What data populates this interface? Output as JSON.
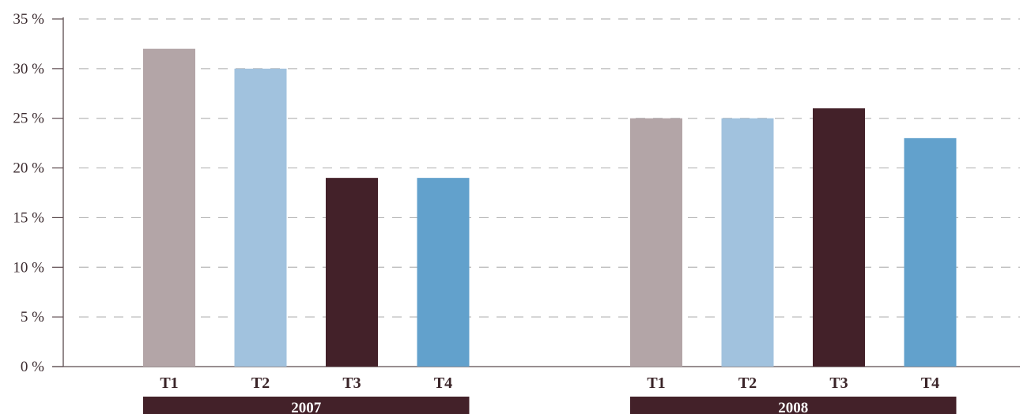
{
  "chart_data": {
    "type": "bar",
    "ylim": [
      0,
      35
    ],
    "y_ticks": [
      0,
      5,
      10,
      15,
      20,
      25,
      30,
      35
    ],
    "y_tick_suffix": " %",
    "grid": "dashed-horizontal",
    "categories": [
      "T1",
      "T2",
      "T3",
      "T4"
    ],
    "groups": [
      {
        "label": "2007",
        "values": [
          32,
          30,
          19,
          19
        ]
      },
      {
        "label": "2008",
        "values": [
          25,
          25,
          26,
          23
        ]
      }
    ],
    "colors": [
      "#b3a5a7",
      "#a1c2de",
      "#432129",
      "#62a1cc"
    ],
    "group_band_color": "#432129",
    "axis_color": "#5b4a4e",
    "grid_color": "#b8b8b8",
    "title": "",
    "xlabel": "",
    "ylabel": ""
  }
}
